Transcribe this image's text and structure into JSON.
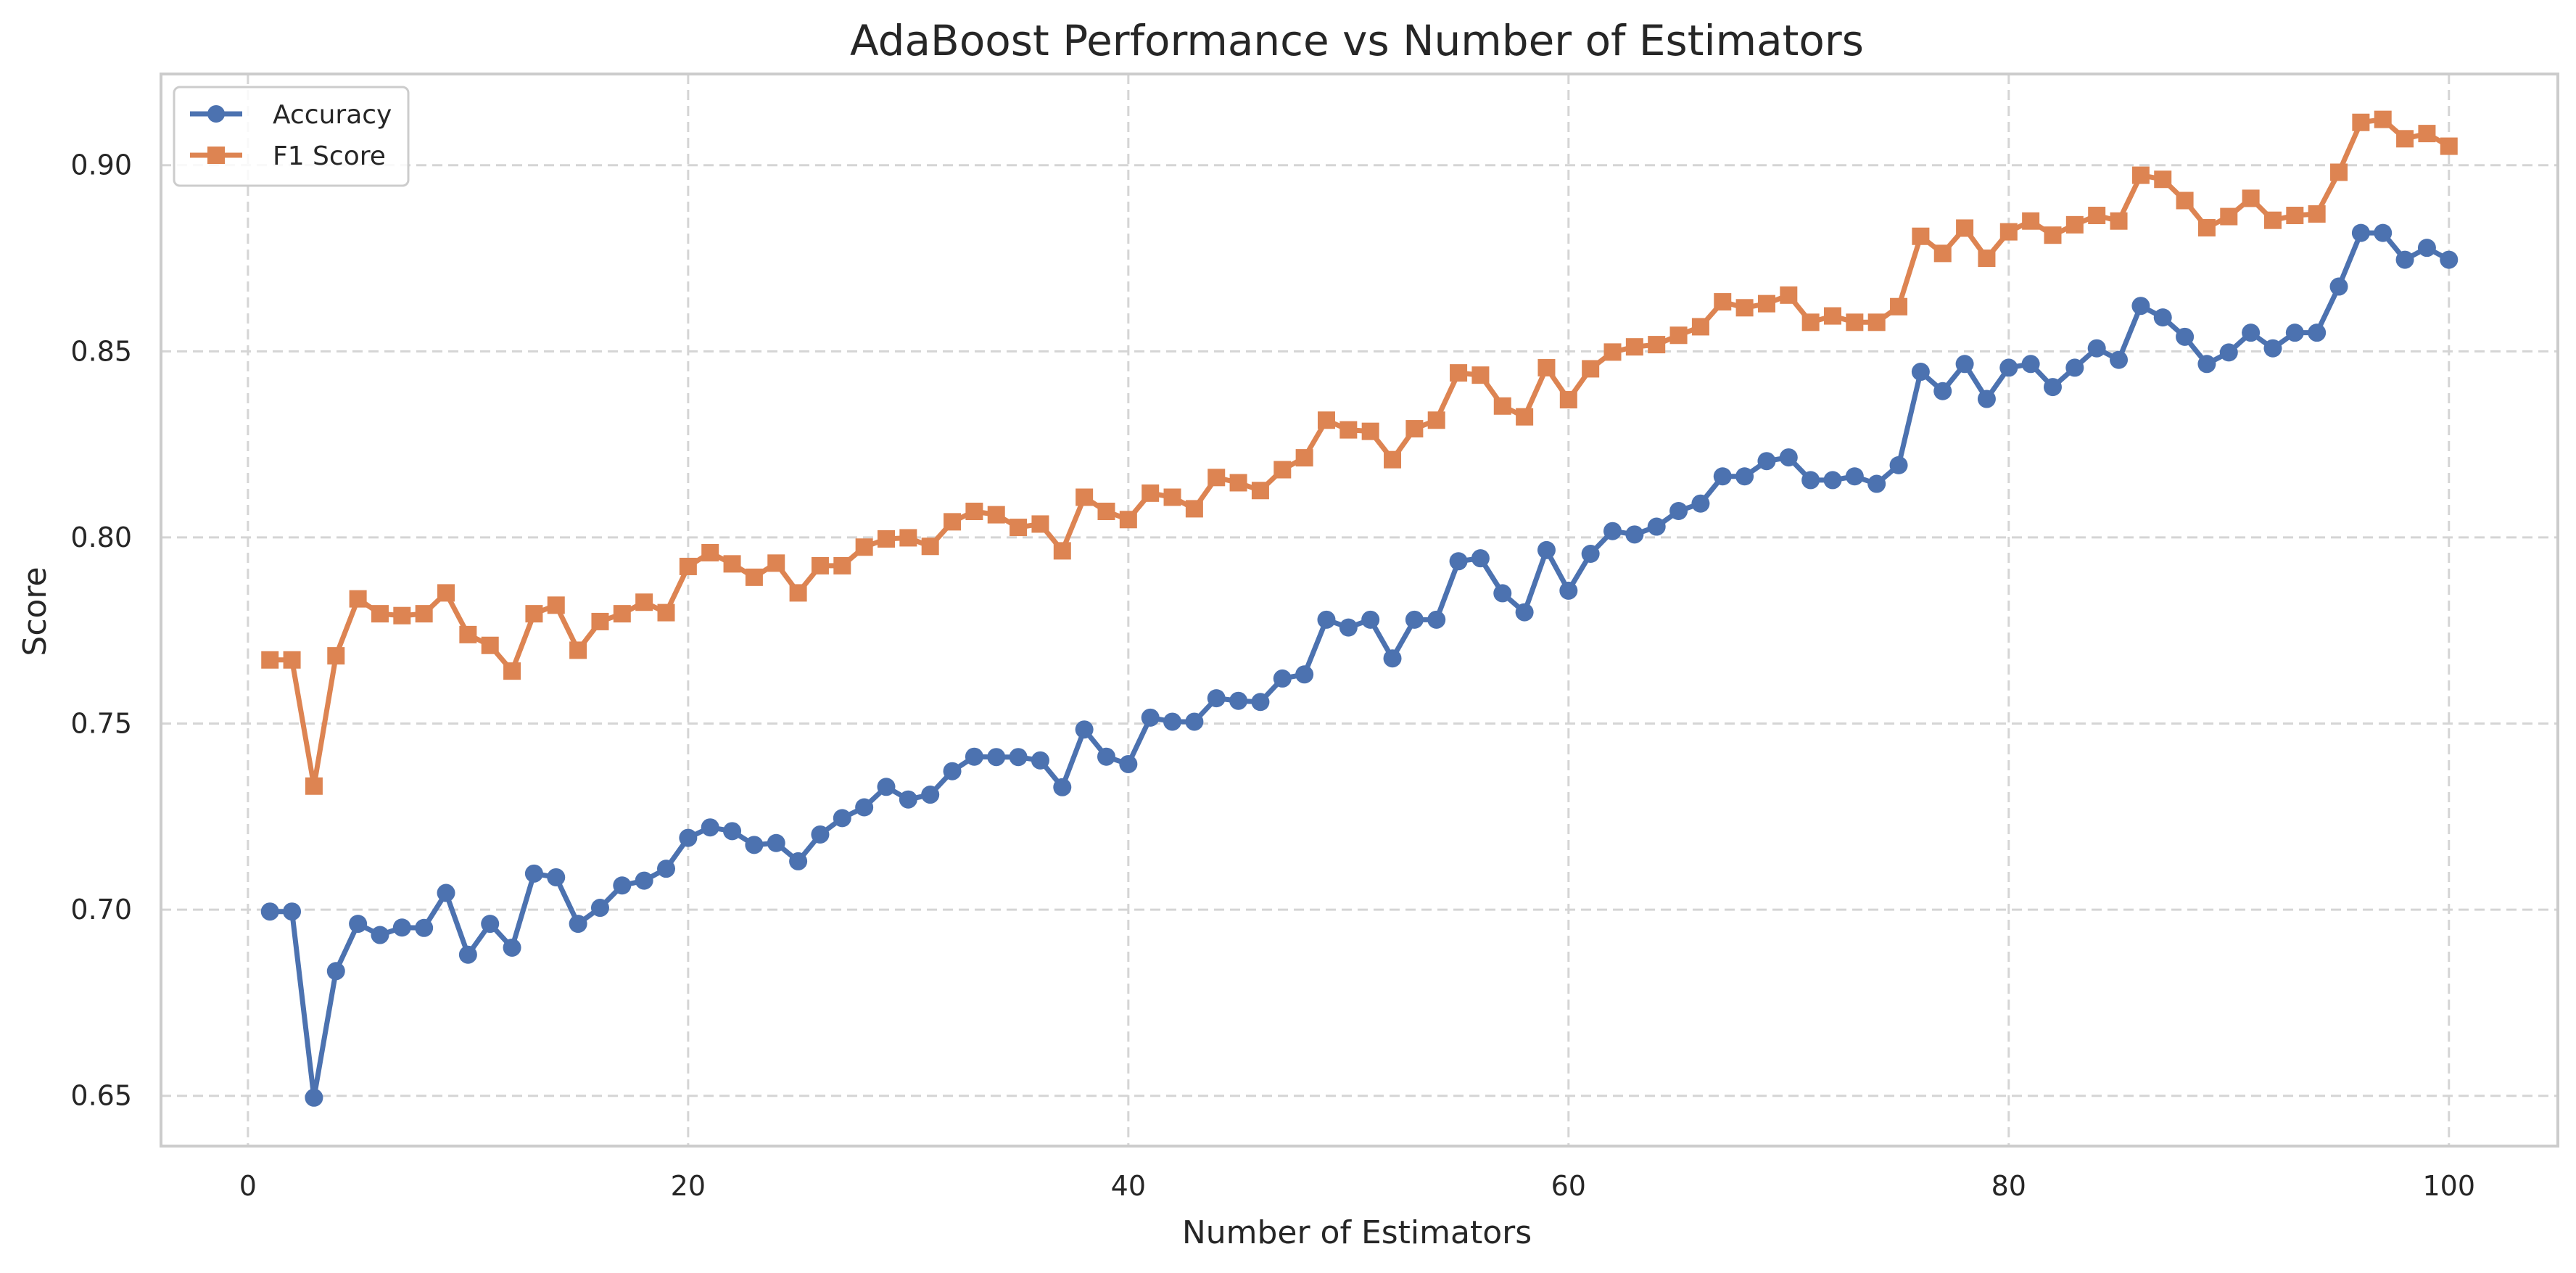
{
  "chart_data": {
    "type": "line",
    "title": "AdaBoost Performance vs Number of Estimators",
    "xlabel": "Number of Estimators",
    "ylabel": "Score",
    "xlim": [
      -3.95,
      104.95
    ],
    "ylim": [
      0.6365,
      0.9245
    ],
    "xticks": [
      0,
      20,
      40,
      60,
      80,
      100
    ],
    "yticks": [
      0.65,
      0.7,
      0.75,
      0.8,
      0.85,
      0.9
    ],
    "xtick_labels": [
      "0",
      "20",
      "40",
      "60",
      "80",
      "100"
    ],
    "ytick_labels": [
      "0.65",
      "0.70",
      "0.75",
      "0.80",
      "0.85",
      "0.90"
    ],
    "grid": true,
    "grid_style": "dashed",
    "legend_position": "top-left",
    "x": [
      1,
      2,
      3,
      4,
      5,
      6,
      7,
      8,
      9,
      10,
      11,
      12,
      13,
      14,
      15,
      16,
      17,
      18,
      19,
      20,
      21,
      22,
      23,
      24,
      25,
      26,
      27,
      28,
      29,
      30,
      31,
      32,
      33,
      34,
      35,
      36,
      37,
      38,
      39,
      40,
      41,
      42,
      43,
      44,
      45,
      46,
      47,
      48,
      49,
      50,
      51,
      52,
      53,
      54,
      55,
      56,
      57,
      58,
      59,
      60,
      61,
      62,
      63,
      64,
      65,
      66,
      67,
      68,
      69,
      70,
      71,
      72,
      73,
      74,
      75,
      76,
      77,
      78,
      79,
      80,
      81,
      82,
      83,
      84,
      85,
      86,
      87,
      88,
      89,
      90,
      91,
      92,
      93,
      94,
      95,
      96,
      97,
      98,
      99,
      100
    ],
    "series": [
      {
        "name": "Accuracy",
        "color": "#4c72b0",
        "marker": "circle",
        "values": [
          0.6995,
          0.6995,
          0.6495,
          0.6835,
          0.6962,
          0.6932,
          0.6952,
          0.6951,
          0.7045,
          0.6879,
          0.6962,
          0.6898,
          0.7097,
          0.7087,
          0.6962,
          0.7005,
          0.7065,
          0.7078,
          0.711,
          0.7193,
          0.7221,
          0.7211,
          0.7174,
          0.7179,
          0.713,
          0.7202,
          0.7246,
          0.7275,
          0.733,
          0.7296,
          0.7309,
          0.7372,
          0.7411,
          0.741,
          0.741,
          0.7401,
          0.7329,
          0.7484,
          0.7411,
          0.7391,
          0.7516,
          0.7505,
          0.7505,
          0.7568,
          0.7561,
          0.7558,
          0.7621,
          0.7632,
          0.7779,
          0.7758,
          0.7779,
          0.7675,
          0.7779,
          0.7779,
          0.7936,
          0.7944,
          0.785,
          0.7799,
          0.7966,
          0.7857,
          0.7956,
          0.8017,
          0.8008,
          0.8029,
          0.8071,
          0.8091,
          0.8164,
          0.8164,
          0.8205,
          0.8215,
          0.8154,
          0.8154,
          0.8164,
          0.8144,
          0.8194,
          0.8445,
          0.8393,
          0.8466,
          0.8372,
          0.8456,
          0.8466,
          0.8404,
          0.8456,
          0.8508,
          0.8477,
          0.8622,
          0.8591,
          0.8539,
          0.8466,
          0.8497,
          0.855,
          0.8508,
          0.855,
          0.855,
          0.8674,
          0.8818,
          0.8818,
          0.8746,
          0.8778,
          0.8746
        ]
      },
      {
        "name": "F1 Score",
        "color": "#dd8452",
        "marker": "square",
        "values": [
          0.7671,
          0.7671,
          0.7332,
          0.7682,
          0.7835,
          0.7795,
          0.779,
          0.7795,
          0.7851,
          0.7739,
          0.771,
          0.7641,
          0.7795,
          0.7818,
          0.7697,
          0.7774,
          0.7795,
          0.7826,
          0.7798,
          0.7922,
          0.7959,
          0.7929,
          0.7893,
          0.7931,
          0.7851,
          0.7924,
          0.7924,
          0.7974,
          0.7996,
          0.7999,
          0.7976,
          0.8042,
          0.807,
          0.8061,
          0.8027,
          0.8036,
          0.7964,
          0.8108,
          0.807,
          0.8048,
          0.8119,
          0.8108,
          0.8077,
          0.8161,
          0.8147,
          0.8126,
          0.8182,
          0.8214,
          0.8315,
          0.8289,
          0.8285,
          0.8209,
          0.8292,
          0.8315,
          0.8442,
          0.8436,
          0.8353,
          0.8324,
          0.8456,
          0.837,
          0.8453,
          0.8498,
          0.8512,
          0.8518,
          0.8543,
          0.8566,
          0.8633,
          0.8617,
          0.8628,
          0.8651,
          0.8578,
          0.8595,
          0.8578,
          0.8578,
          0.862,
          0.8809,
          0.8763,
          0.8831,
          0.875,
          0.8821,
          0.885,
          0.8812,
          0.884,
          0.8865,
          0.885,
          0.8973,
          0.8962,
          0.8905,
          0.8832,
          0.8862,
          0.8911,
          0.8852,
          0.8865,
          0.8869,
          0.8981,
          0.9115,
          0.9123,
          0.9071,
          0.9085,
          0.9051
        ]
      }
    ]
  }
}
